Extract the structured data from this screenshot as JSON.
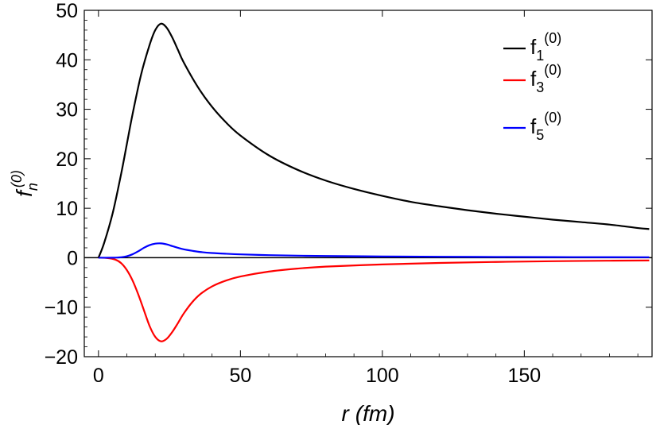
{
  "chart_data": {
    "type": "line",
    "xlabel": {
      "var": "r",
      "unit": "(fm)"
    },
    "ylabel": {
      "base": "f",
      "sub": "n",
      "sup": "(0)"
    },
    "xlim": [
      -5,
      195
    ],
    "ylim": [
      -20,
      50
    ],
    "xticks": [
      0,
      50,
      100,
      150
    ],
    "yticks": [
      -20,
      -10,
      0,
      10,
      20,
      30,
      40,
      50
    ],
    "ytick_labels": [
      "−20",
      "−10",
      "0",
      "10",
      "20",
      "30",
      "40",
      "50"
    ],
    "grid": false,
    "legend_position": "top-right",
    "series": [
      {
        "name": "f1(0)",
        "label": {
          "base": "f",
          "sub": "1",
          "sup": "(0)"
        },
        "color": "#000000",
        "x": [
          0,
          2,
          5,
          8,
          10,
          12,
          15,
          18,
          20,
          22,
          24,
          26,
          28,
          30,
          35,
          40,
          45,
          50,
          60,
          70,
          80,
          90,
          100,
          110,
          120,
          130,
          140,
          150,
          160,
          170,
          180,
          190,
          194
        ],
        "y": [
          0,
          3,
          9,
          17,
          23,
          29,
          37,
          43,
          46,
          47.3,
          46.5,
          44.5,
          42,
          39.5,
          34.5,
          30.5,
          27.3,
          24.7,
          20.7,
          17.8,
          15.6,
          13.9,
          12.5,
          11.3,
          10.4,
          9.6,
          8.9,
          8.3,
          7.7,
          7.2,
          6.7,
          6.0,
          5.8
        ]
      },
      {
        "name": "f3(0)",
        "label": {
          "base": "f",
          "sub": "3",
          "sup": "(0)"
        },
        "color": "#ff0000",
        "x": [
          0,
          3,
          6,
          8,
          10,
          12,
          14,
          16,
          18,
          20,
          22,
          24,
          26,
          28,
          30,
          33,
          36,
          40,
          45,
          50,
          60,
          70,
          80,
          100,
          120,
          140,
          160,
          180,
          194
        ],
        "y": [
          0,
          -0.05,
          -0.4,
          -1.1,
          -2.5,
          -4.6,
          -7.4,
          -10.6,
          -13.8,
          -16.0,
          -16.9,
          -16.4,
          -15.0,
          -13.2,
          -11.3,
          -9.0,
          -7.3,
          -5.8,
          -4.6,
          -3.8,
          -2.8,
          -2.2,
          -1.8,
          -1.35,
          -1.05,
          -0.85,
          -0.7,
          -0.6,
          -0.55
        ]
      },
      {
        "name": "f5(0)",
        "label": {
          "base": "f",
          "sub": "5",
          "sup": "(0)"
        },
        "color": "#0000ff",
        "x": [
          0,
          5,
          8,
          10,
          12,
          14,
          16,
          18,
          20,
          22,
          24,
          26,
          28,
          30,
          33,
          36,
          40,
          45,
          50,
          60,
          70,
          80,
          100,
          120,
          140,
          160,
          180,
          194
        ],
        "y": [
          0,
          0.01,
          0.1,
          0.3,
          0.7,
          1.3,
          2.0,
          2.55,
          2.85,
          2.9,
          2.7,
          2.35,
          2.0,
          1.7,
          1.4,
          1.15,
          0.95,
          0.8,
          0.68,
          0.52,
          0.42,
          0.35,
          0.26,
          0.2,
          0.16,
          0.13,
          0.11,
          0.1
        ]
      }
    ]
  }
}
